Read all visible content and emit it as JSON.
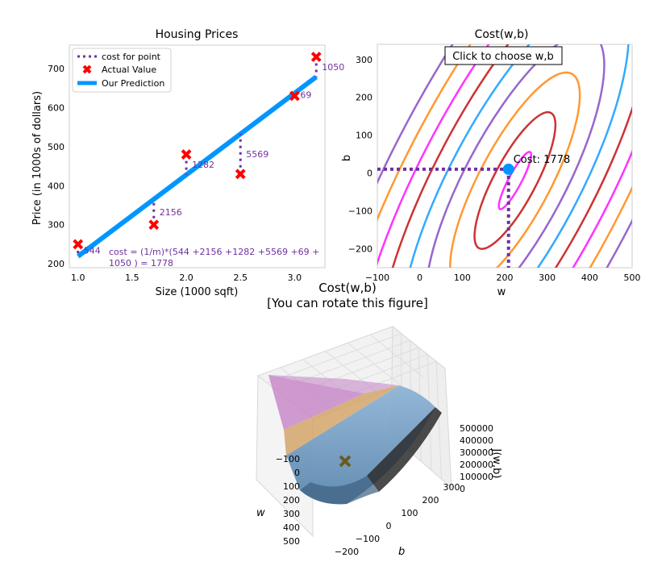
{
  "colors": {
    "cost_line": "#7030a0",
    "actual_marker": "#ff0000",
    "prediction": "#0096ff",
    "contour_colors": [
      "#ff33ff",
      "#cc3333",
      "#ff9933",
      "#9966cc",
      "#33aaff",
      "#cc3333",
      "#ff33ff",
      "#ff9933",
      "#9966cc"
    ],
    "point_marker": "#0096ff",
    "surface_marker": "#6b5a1e"
  },
  "button": {
    "label": "Click to choose w,b"
  },
  "chart_data": [
    {
      "type": "scatter",
      "title": "Housing Prices",
      "xlabel": "Size (1000 sqft)",
      "ylabel": "Price (in 1000s of dollars)",
      "xlim": [
        0.92,
        3.28
      ],
      "ylim": [
        190,
        760
      ],
      "xticks": [
        "1.0",
        "1.5",
        "2.0",
        "2.5",
        "3.0"
      ],
      "yticks": [
        "200",
        "300",
        "400",
        "500",
        "600",
        "700"
      ],
      "xtick_values": [
        1.0,
        1.5,
        2.0,
        2.5,
        3.0
      ],
      "ytick_values": [
        200,
        300,
        400,
        500,
        600,
        700
      ],
      "actual": {
        "name": "Actual Value",
        "x": [
          1.0,
          1.7,
          2.0,
          2.5,
          3.0,
          3.2
        ],
        "y": [
          250,
          300,
          480,
          430,
          630,
          730
        ]
      },
      "prediction": {
        "name": "Our Prediction",
        "w": 209,
        "b": 10,
        "x_range": [
          1.0,
          3.2
        ]
      },
      "cost_points": {
        "name": "cost for point",
        "x": [
          1.0,
          1.7,
          2.0,
          2.5,
          3.0,
          3.2
        ],
        "labels": [
          "544",
          "2156",
          "1282",
          "5569",
          "69",
          "1050"
        ]
      },
      "legend": "top-left",
      "annotation": [
        "cost = (1/m)*(544 +2156 +1282 +5569 +69 +",
        "1050 ) = 1778"
      ]
    },
    {
      "type": "contour",
      "title": "Cost(w,b)",
      "xlabel": "w",
      "ylabel": "b",
      "xlim": [
        -100,
        500
      ],
      "ylim": [
        -250,
        340
      ],
      "xticks": [
        "−100",
        "0",
        "100",
        "200",
        "300",
        "400",
        "500"
      ],
      "yticks": [
        "−200",
        "−100",
        "0",
        "100",
        "200",
        "300"
      ],
      "xtick_values": [
        -100,
        0,
        100,
        200,
        300,
        400,
        500
      ],
      "ytick_values": [
        -200,
        -100,
        0,
        100,
        200,
        300
      ],
      "selected_point": {
        "w": 209,
        "b": 10,
        "label": "Cost: 1778"
      }
    },
    {
      "type": "surface3d",
      "title": "Cost(w,b)",
      "subtitle": "[You can rotate this figure]",
      "xlabel": "w",
      "ylabel": "b",
      "zlabel": "J(w,b)",
      "w_ticks": [
        "−100",
        "0",
        "100",
        "200",
        "300",
        "400",
        "500"
      ],
      "b_ticks": [
        "−200",
        "−100",
        "0",
        "100",
        "200",
        "300"
      ],
      "z_ticks": [
        "500000",
        "400000",
        "300000",
        "200000",
        "100000",
        "0"
      ]
    }
  ]
}
